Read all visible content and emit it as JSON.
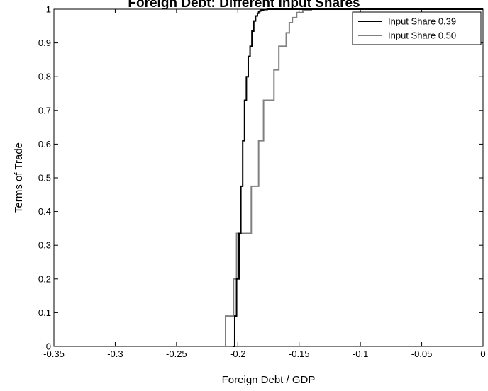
{
  "chart_data": {
    "type": "line",
    "title": "Foreign Debt: Different Input Shares",
    "xlabel": "Foreign Debt / GDP",
    "ylabel": "Terms of Trade",
    "xlim": [
      -0.35,
      0
    ],
    "ylim": [
      0,
      1
    ],
    "xticks": [
      "-0.35",
      "-0.3",
      "-0.25",
      "-0.2",
      "-0.15",
      "-0.1",
      "-0.05",
      "0"
    ],
    "yticks": [
      "0",
      "0.1",
      "0.2",
      "0.3",
      "0.4",
      "0.5",
      "0.6",
      "0.7",
      "0.8",
      "0.9",
      "1"
    ],
    "grid": false,
    "legend_position": "top-right",
    "step": true,
    "series": [
      {
        "name": "Input Share 0.39",
        "color": "#000000",
        "x": [
          -0.204,
          -0.2025,
          -0.201,
          -0.199,
          -0.1975,
          -0.196,
          -0.1945,
          -0.193,
          -0.1915,
          -0.19,
          -0.1885,
          -0.187,
          -0.1855,
          -0.184,
          -0.183,
          -0.182,
          -0.181,
          -0.18,
          -0.179,
          -0.176,
          -0.17,
          -0.16,
          0
        ],
        "y": [
          0,
          0.09,
          0.2,
          0.335,
          0.475,
          0.61,
          0.73,
          0.8,
          0.86,
          0.89,
          0.935,
          0.965,
          0.98,
          0.988,
          0.993,
          0.995,
          0.997,
          0.998,
          0.999,
          1.0,
          1.0,
          1.0,
          1.0
        ]
      },
      {
        "name": "Input Share 0.50",
        "color": "#808080",
        "x": [
          -0.295,
          -0.213,
          -0.21,
          -0.2035,
          -0.201,
          -0.1985,
          -0.195,
          -0.189,
          -0.183,
          -0.179,
          -0.175,
          -0.1705,
          -0.1665,
          -0.1635,
          -0.1605,
          -0.158,
          -0.1555,
          -0.152,
          -0.147,
          -0.14,
          -0.13,
          0
        ],
        "y": [
          0,
          0,
          0.09,
          0.2,
          0.335,
          0.335,
          0.335,
          0.475,
          0.61,
          0.73,
          0.73,
          0.82,
          0.89,
          0.89,
          0.93,
          0.96,
          0.975,
          0.99,
          0.998,
          1.0,
          1.0,
          1.0
        ]
      }
    ]
  }
}
